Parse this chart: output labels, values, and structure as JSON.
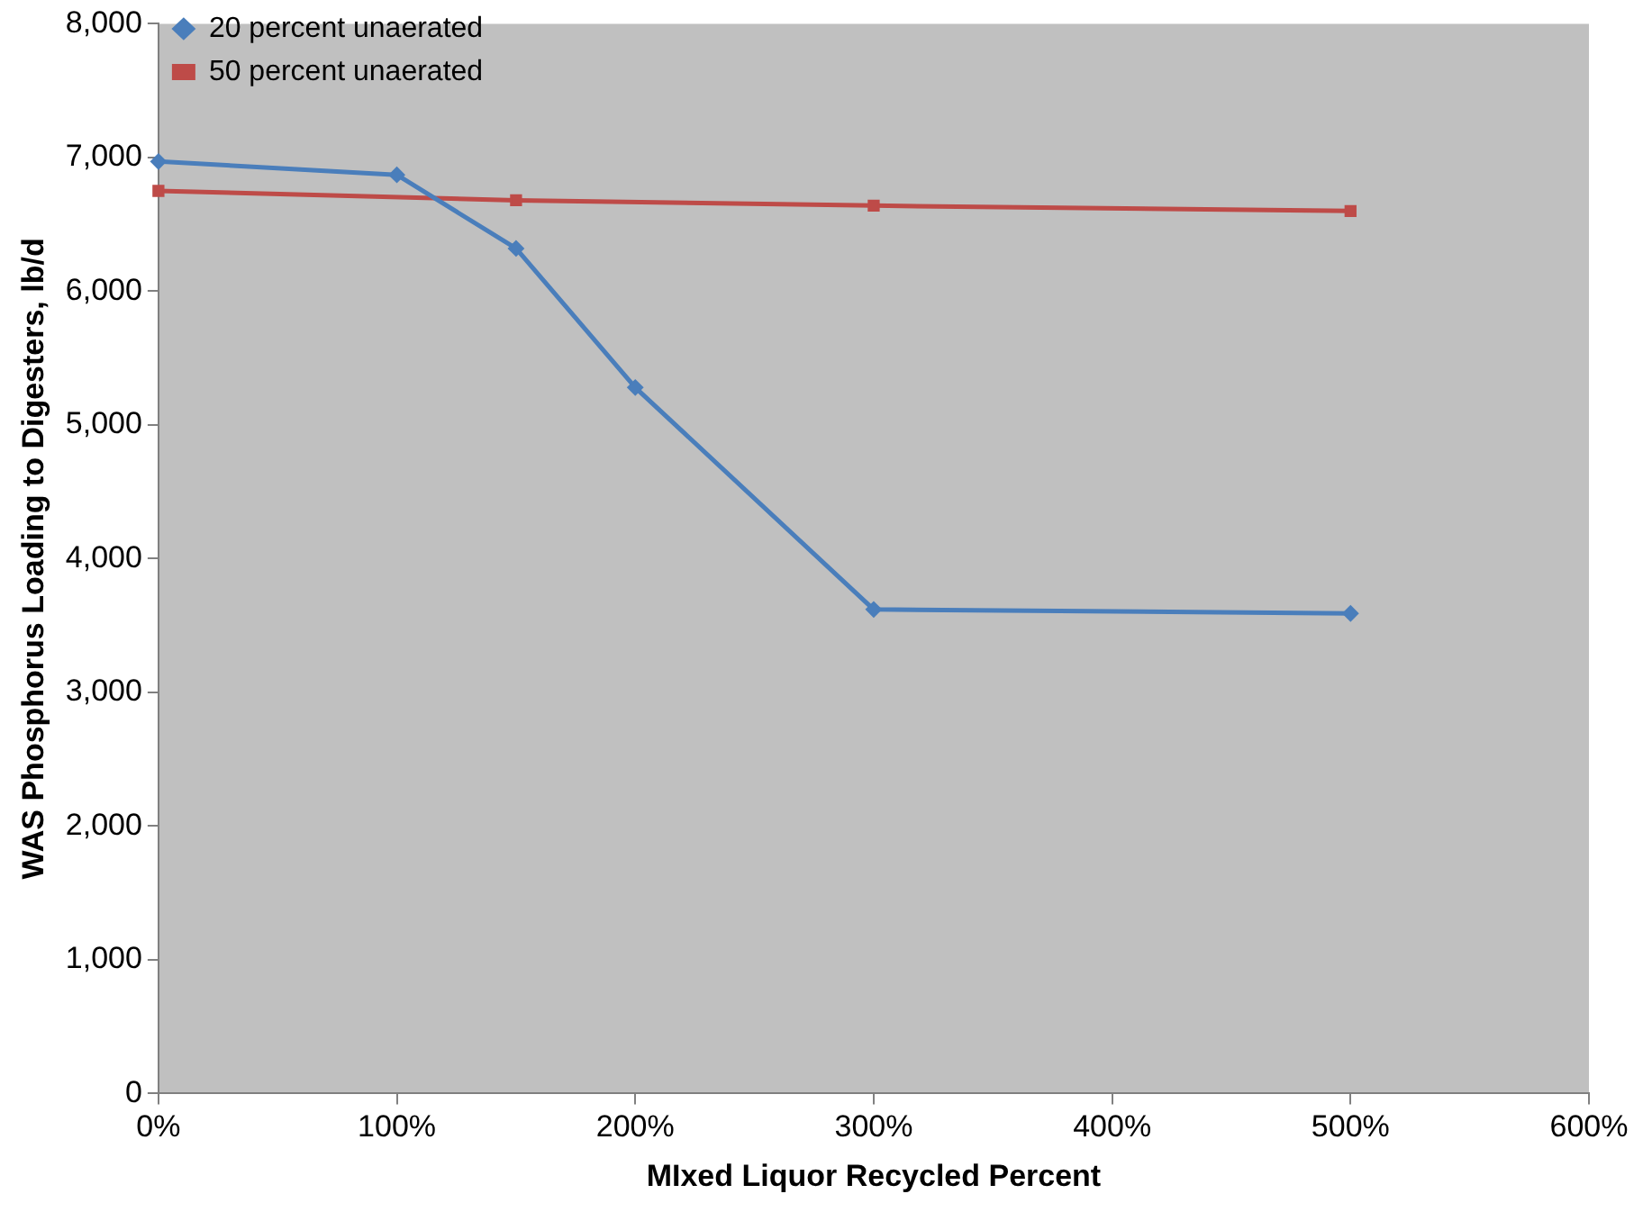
{
  "chart_data": {
    "type": "line",
    "xlabel": "MIxed Liquor Recycled Percent",
    "ylabel": "WAS Phosphorus Loading to Digesters, lb/d",
    "xlim": [
      0,
      600
    ],
    "xticks": [
      {
        "value": 0,
        "label": "0%"
      },
      {
        "value": 100,
        "label": "100%"
      },
      {
        "value": 200,
        "label": "200%"
      },
      {
        "value": 300,
        "label": "300%"
      },
      {
        "value": 400,
        "label": "400%"
      },
      {
        "value": 500,
        "label": "500%"
      },
      {
        "value": 600,
        "label": "600%"
      }
    ],
    "ylim": [
      0,
      8000
    ],
    "yticks": [
      0,
      {
        "value": 1000,
        "label": "1,000"
      },
      {
        "value": 2000,
        "label": "2,000"
      },
      {
        "value": 3000,
        "label": "3,000"
      },
      {
        "value": 4000,
        "label": "4,000"
      },
      {
        "value": 5000,
        "label": "5,000"
      },
      {
        "value": 6000,
        "label": "6,000"
      },
      {
        "value": 7000,
        "label": "7,000"
      },
      {
        "value": 8000,
        "label": "8,000"
      }
    ],
    "grid": false,
    "legend": "top left",
    "line_style": "solid",
    "series": [
      {
        "name": "20 percent unaerated",
        "color": "#4a7ebb",
        "marker": "diamond",
        "x": [
          0,
          100,
          150,
          200,
          300,
          500
        ],
        "values": [
          6970,
          6870,
          6320,
          5280,
          3620,
          3590
        ]
      },
      {
        "name": "50 percent unaerated",
        "color": "#be4b48",
        "marker": "square",
        "x": [
          0,
          150,
          300,
          500
        ],
        "values": [
          6750,
          6680,
          6640,
          6600
        ]
      }
    ]
  }
}
